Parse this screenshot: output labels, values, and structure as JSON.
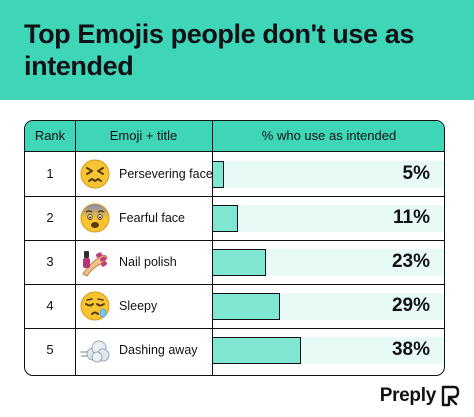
{
  "title": "Top Emojis people don't use as intended",
  "brand": {
    "name": "Preply"
  },
  "colors": {
    "accent": "#3fd6b8",
    "bar": "#7ee6d1",
    "track": "#e8faf6",
    "text": "#121117"
  },
  "table": {
    "headers": {
      "rank": "Rank",
      "emoji": "Emoji + title",
      "percent": "% who use as intended"
    },
    "rows": [
      {
        "rank": "1",
        "icon": "persevering-face-icon",
        "label": "Persevering face",
        "value_label": "5%"
      },
      {
        "rank": "2",
        "icon": "fearful-face-icon",
        "label": "Fearful face",
        "value_label": "11%"
      },
      {
        "rank": "3",
        "icon": "nail-polish-icon",
        "label": "Nail polish",
        "value_label": "23%"
      },
      {
        "rank": "4",
        "icon": "sleepy-face-icon",
        "label": "Sleepy",
        "value_label": "29%"
      },
      {
        "rank": "5",
        "icon": "dashing-away-icon",
        "label": "Dashing away",
        "value_label": "38%"
      }
    ]
  },
  "chart_data": {
    "type": "bar",
    "title": "Top Emojis people don't use as intended",
    "categories": [
      "Persevering face",
      "Fearful face",
      "Nail polish",
      "Sleepy",
      "Dashing away"
    ],
    "values": [
      5,
      11,
      23,
      29,
      38
    ],
    "xlabel": "",
    "ylabel": "% who use as intended",
    "ylim": [
      0,
      100
    ],
    "grid": false
  }
}
